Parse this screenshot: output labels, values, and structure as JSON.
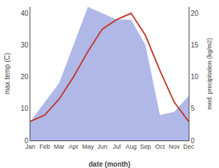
{
  "chart_data": {
    "type": "line",
    "xlabel": "date (month)",
    "ylabel": "max temp (C)",
    "y2label": "med. precipitation (kg/m2)",
    "categories": [
      "Jan",
      "Feb",
      "Mar",
      "Apr",
      "May",
      "Jun",
      "Jul",
      "Aug",
      "Sep",
      "Oct",
      "Nov",
      "Dec"
    ],
    "series": [
      {
        "type": "area",
        "axis": "y2",
        "color": "#b0b8e8",
        "values": [
          3,
          6,
          9,
          15,
          21,
          20,
          19,
          19,
          15,
          4,
          4.5,
          7
        ]
      },
      {
        "type": "line",
        "axis": "y",
        "color": "#c0392b",
        "values": [
          6,
          8,
          13,
          20,
          28,
          35,
          38,
          40,
          33,
          22,
          12,
          6
        ]
      }
    ],
    "ylim": [
      0,
      42
    ],
    "yticks": [
      0,
      10,
      20,
      30,
      40
    ],
    "y2lim": [
      0,
      21
    ],
    "y2ticks": [
      0,
      5,
      10,
      15,
      20
    ],
    "grid": false
  }
}
